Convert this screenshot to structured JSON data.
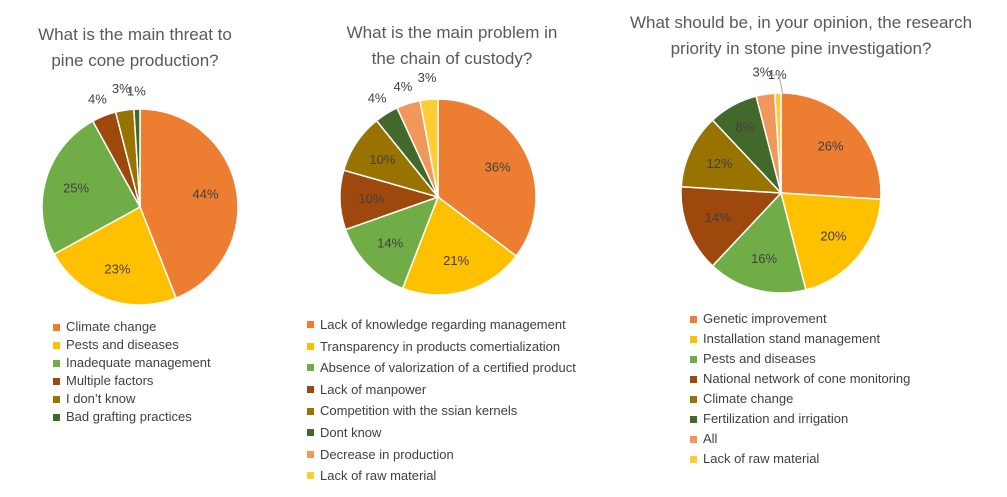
{
  "chart_data": [
    {
      "type": "pie",
      "title": "What is the main threat to\npine cone production?",
      "categories": [
        "Climate change",
        "Pests and diseases",
        "Inadequate management",
        "Multiple factors",
        "I don’t know",
        "Bad grafting practices"
      ],
      "values": [
        44,
        23,
        25,
        4,
        3,
        1
      ],
      "labels": [
        "44%",
        "23%",
        "25%",
        "4%",
        "3%",
        "1%"
      ],
      "colors": [
        "#ED7D31",
        "#FFC000",
        "#70AD47",
        "#9E480E",
        "#997300",
        "#43682B"
      ],
      "legend": "bottom"
    },
    {
      "type": "pie",
      "title": "What is the main problem in\nthe chain of custody?",
      "categories": [
        "Lack of knowledge regarding management",
        "Transparency in products comertialization",
        "Absence of valorization of a certified product",
        "Lack of manpower",
        "Competition with the ssian kernels",
        "Dont know",
        "Decrease in production",
        "Lack of raw material"
      ],
      "values": [
        36,
        21,
        14,
        10,
        10,
        4,
        4,
        3
      ],
      "labels": [
        "36%",
        "21%",
        "14%",
        "10%",
        "10%",
        "4%",
        "4%",
        "3%"
      ],
      "colors": [
        "#ED7D31",
        "#FFC000",
        "#70AD47",
        "#9E480E",
        "#997300",
        "#43682B",
        "#F1975A",
        "#FFCD33"
      ],
      "legend": "bottom"
    },
    {
      "type": "pie",
      "title": "What should be, in your opinion, the research\npriority in stone pine investigation?",
      "categories": [
        "Genetic improvement",
        "Installation stand management",
        "Pests and diseases",
        "National network of cone monitoring",
        "Climate change",
        "Fertilization and irrigation",
        "All",
        "Lack of raw material"
      ],
      "values": [
        26,
        20,
        16,
        14,
        12,
        8,
        3,
        1
      ],
      "labels": [
        "26%",
        "20%",
        "16%",
        "14%",
        "12%",
        "8%",
        "3%",
        "1%"
      ],
      "colors": [
        "#ED7D31",
        "#FFC000",
        "#70AD47",
        "#9E480E",
        "#997300",
        "#43682B",
        "#F1975A",
        "#FFCD33"
      ],
      "legend": "bottom"
    }
  ]
}
